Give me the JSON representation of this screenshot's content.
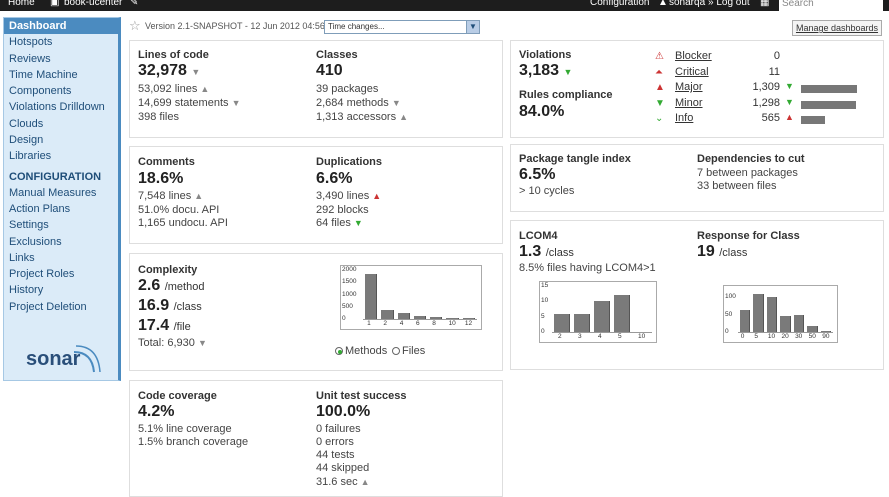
{
  "topbar": {
    "home": "Home",
    "project": "book-ucenter",
    "configuration": "Configuration",
    "user": "sonarqa",
    "logout": "» Log out",
    "search_placeholder": "Search"
  },
  "sidebar": {
    "items": [
      {
        "label": "Dashboard",
        "active": true
      },
      {
        "label": "Hotspots"
      },
      {
        "label": "Reviews"
      },
      {
        "label": "Time Machine"
      },
      {
        "label": "Components"
      },
      {
        "label": "Violations Drilldown"
      },
      {
        "label": "Clouds"
      },
      {
        "label": "Design"
      },
      {
        "label": "Libraries"
      }
    ],
    "config_heading": "CONFIGURATION",
    "config_items": [
      {
        "label": "Manual Measures"
      },
      {
        "label": "Action Plans"
      },
      {
        "label": "Settings"
      },
      {
        "label": "Exclusions"
      },
      {
        "label": "Links"
      },
      {
        "label": "Project Roles"
      },
      {
        "label": "History"
      },
      {
        "label": "Project Deletion"
      }
    ],
    "logo": "sonar"
  },
  "version_text": "Version 2.1-SNAPSHOT - 12 Jun 2012 04:56",
  "time_changes": "Time changes...",
  "manage_dashboards": "Manage dashboards",
  "size": {
    "loc_label": "Lines of code",
    "loc_value": "32,978",
    "lines": "53,092 lines",
    "statements": "14,699 statements",
    "files": "398 files",
    "classes_label": "Classes",
    "classes_value": "410",
    "packages": "39 packages",
    "methods": "2,684 methods",
    "accessors": "1,313 accessors"
  },
  "comments": {
    "label": "Comments",
    "value": "18.6%",
    "lines": "7,548 lines",
    "docu": "51.0% docu. API",
    "undocu": "1,165 undocu. API",
    "dup_label": "Duplications",
    "dup_value": "6.6%",
    "dup_lines": "3,490 lines",
    "dup_blocks": "292 blocks",
    "dup_files": "64 files"
  },
  "complexity": {
    "label": "Complexity",
    "per_method": "2.6",
    "per_method_unit": "/method",
    "per_class": "16.9",
    "per_class_unit": "/class",
    "per_file": "17.4",
    "per_file_unit": "/file",
    "total": "Total: 6,930",
    "radio_methods": "Methods",
    "radio_files": "Files",
    "chart_data": {
      "type": "bar",
      "categories": [
        "1",
        "2",
        "4",
        "6",
        "8",
        "10",
        "12"
      ],
      "values": [
        1820,
        360,
        240,
        130,
        70,
        50,
        60
      ],
      "title": "",
      "xlabel": "",
      "ylabel": "",
      "ylim": [
        0,
        2000
      ],
      "yticks": [
        "2000",
        "1500",
        "1000",
        "500",
        "0"
      ]
    }
  },
  "coverage": {
    "label": "Code coverage",
    "value": "4.2%",
    "line": "5.1% line coverage",
    "branch": "1.5% branch coverage",
    "ut_label": "Unit test success",
    "ut_value": "100.0%",
    "failures": "0 failures",
    "errors": "0 errors",
    "tests": "44 tests",
    "skipped": "44 skipped",
    "duration": "31.6 sec"
  },
  "violations": {
    "label": "Violations",
    "value": "3,183",
    "compliance_label": "Rules compliance",
    "compliance_value": "84.0%",
    "severities": [
      {
        "name": "Blocker",
        "count": "0",
        "bar": 0,
        "color": "#c33",
        "icon": "blocker-icon",
        "trend": ""
      },
      {
        "name": "Critical",
        "count": "11",
        "bar": 0,
        "color": "#c33",
        "icon": "critical-icon",
        "trend": ""
      },
      {
        "name": "Major",
        "count": "1,309",
        "bar": 1.0,
        "color": "#c33",
        "icon": "major-icon",
        "trend": "down"
      },
      {
        "name": "Minor",
        "count": "1,298",
        "bar": 0.99,
        "color": "#3a3",
        "icon": "minor-icon",
        "trend": "down"
      },
      {
        "name": "Info",
        "count": "565",
        "bar": 0.43,
        "color": "#3a3",
        "icon": "info-icon",
        "trend": "up"
      }
    ]
  },
  "design": {
    "tangle_label": "Package tangle index",
    "tangle_value": "6.5%",
    "cycles": "> 10 cycles",
    "deps_label": "Dependencies to cut",
    "deps_packages": "7 between packages",
    "deps_files": "33 between files"
  },
  "lcom": {
    "label": "LCOM4",
    "value": "1.3",
    "unit": "/class",
    "files": "8.5% files having LCOM4>1",
    "chart_data": {
      "type": "bar",
      "categories": [
        "2",
        "3",
        "4",
        "5",
        "10"
      ],
      "values": [
        6,
        6,
        10,
        12,
        0
      ],
      "ylim": [
        0,
        15
      ],
      "yticks": [
        "15",
        "10",
        "5",
        "0"
      ]
    }
  },
  "rfc": {
    "label": "Response for Class",
    "value": "19",
    "unit": "/class",
    "chart_data": {
      "type": "bar",
      "categories": [
        "0",
        "5",
        "10",
        "20",
        "30",
        "50",
        "90"
      ],
      "values": [
        62,
        110,
        100,
        45,
        48,
        18,
        2
      ],
      "ylim": [
        0,
        120
      ],
      "yticks": [
        "100",
        "50",
        "0"
      ]
    }
  }
}
